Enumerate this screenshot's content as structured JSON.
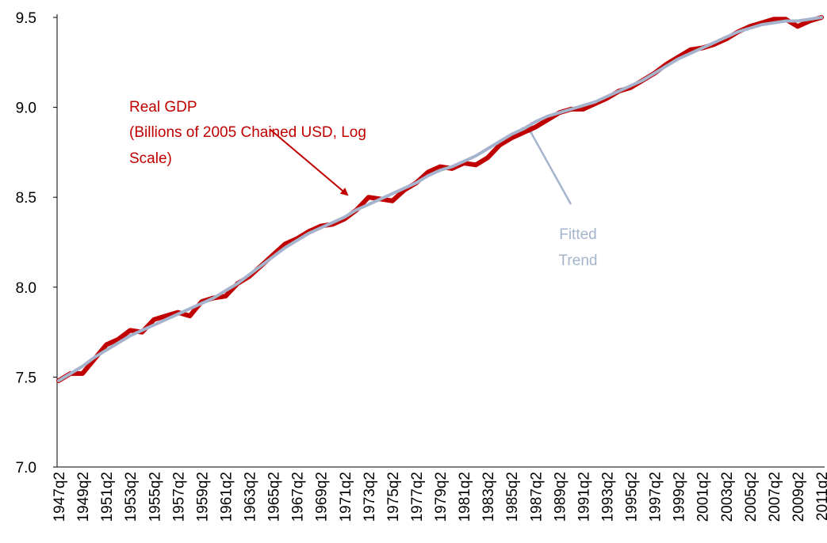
{
  "chart_data": {
    "type": "line",
    "categories": [
      "1947q2",
      null,
      "1949q2",
      null,
      "1951q2",
      null,
      "1953q2",
      null,
      "1955q2",
      null,
      "1957q2",
      null,
      "1959q2",
      null,
      "1961q2",
      null,
      "1963q2",
      null,
      "1965q2",
      null,
      "1967q2",
      null,
      "1969q2",
      null,
      "1971q2",
      null,
      "1973q2",
      null,
      "1975q2",
      null,
      "1977q2",
      null,
      "1979q2",
      null,
      "1981q2",
      null,
      "1983q2",
      null,
      "1985q2",
      null,
      "1987q2",
      null,
      "1989q2",
      null,
      "1991q2",
      null,
      "1993q2",
      null,
      "1995q2",
      null,
      "1997q2",
      null,
      "1999q2",
      null,
      "2001q2",
      null,
      "2003q2",
      null,
      "2005q2",
      null,
      "2007q2",
      null,
      "2009q2",
      null,
      "2011q2"
    ],
    "series": [
      {
        "color": "#c00000",
        "values": [
          7.48,
          7.52,
          7.52,
          7.6,
          7.68,
          7.71,
          7.76,
          7.75,
          7.82,
          7.84,
          7.86,
          7.84,
          7.92,
          7.94,
          7.95,
          8.02,
          8.06,
          8.12,
          8.18,
          8.24,
          8.27,
          8.31,
          8.34,
          8.35,
          8.38,
          8.43,
          8.5,
          8.49,
          8.48,
          8.54,
          8.58,
          8.64,
          8.67,
          8.66,
          8.69,
          8.68,
          8.72,
          8.79,
          8.83,
          8.86,
          8.89,
          8.93,
          8.97,
          8.99,
          8.99,
          9.02,
          9.05,
          9.09,
          9.11,
          9.15,
          9.19,
          9.24,
          9.28,
          9.32,
          9.33,
          9.35,
          9.38,
          9.42,
          9.45,
          9.47,
          9.49,
          9.49,
          9.45,
          9.48,
          9.5
        ]
      },
      {
        "color": "#a5b4cc",
        "values": [
          7.48,
          7.52,
          7.56,
          7.61,
          7.65,
          7.69,
          7.73,
          7.76,
          7.79,
          7.82,
          7.85,
          7.88,
          7.91,
          7.94,
          7.98,
          8.02,
          8.07,
          8.12,
          8.17,
          8.22,
          8.26,
          8.3,
          8.33,
          8.36,
          8.39,
          8.43,
          8.46,
          8.49,
          8.52,
          8.55,
          8.58,
          8.62,
          8.65,
          8.67,
          8.7,
          8.73,
          8.77,
          8.81,
          8.85,
          8.88,
          8.92,
          8.95,
          8.97,
          8.99,
          9.01,
          9.03,
          9.06,
          9.09,
          9.12,
          9.15,
          9.19,
          9.23,
          9.27,
          9.3,
          9.33,
          9.36,
          9.39,
          9.42,
          9.44,
          9.46,
          9.47,
          9.48,
          9.48,
          9.49,
          9.5
        ]
      }
    ],
    "ylim": [
      7,
      9.5
    ],
    "yticks": [
      {
        "value": 7,
        "label": "7.0"
      },
      7.5,
      {
        "value": 8,
        "label": "8.0"
      },
      8.5,
      {
        "value": 9,
        "label": "9.0"
      },
      9.5
    ],
    "annotations": [
      [
        "Real GDP",
        "(Billions of 2005 Chained USD, Log",
        "Scale)"
      ],
      [
        "Fitted",
        "Trend"
      ]
    ]
  }
}
